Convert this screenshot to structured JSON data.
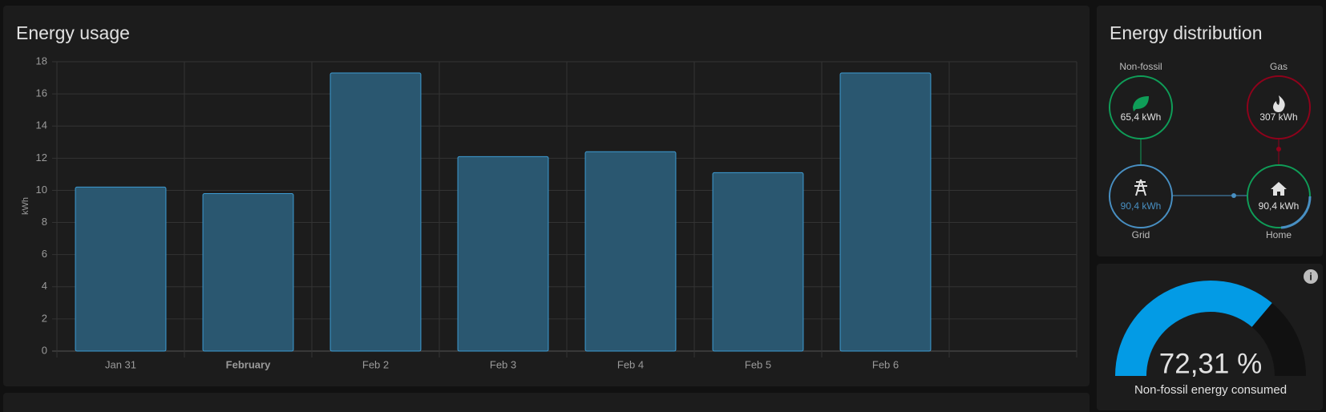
{
  "chart_data": {
    "type": "bar",
    "title": "Energy usage",
    "y_label": "kWh",
    "categories": [
      "Jan 31",
      "February",
      "Feb 2",
      "Feb 3",
      "Feb 4",
      "Feb 5",
      "Feb 6",
      null
    ],
    "values": [
      10.2,
      9.8,
      17.3,
      12.1,
      12.4,
      11.1,
      17.3,
      null
    ],
    "color": "#2a5770",
    "border_color": "#3d9bd2",
    "ylim": [
      0,
      18
    ],
    "yticks": [
      0,
      2,
      4,
      6,
      8,
      10,
      12,
      14,
      16,
      18
    ],
    "grid": true
  },
  "distribution": {
    "title": "Energy distribution",
    "nodes": [
      {
        "label": "Non-fossil",
        "value": "65,4 kWh",
        "color": "#0f9d58"
      },
      {
        "label": "Gas",
        "value": "307 kWh",
        "color": "#8e021b"
      },
      {
        "label": "Grid",
        "value": "90,4 kWh",
        "color": "#488fc2"
      },
      {
        "label": "Home",
        "value": "90,4 kWh",
        "color": "#0f9d58"
      }
    ]
  },
  "gauge": {
    "value": 72.31,
    "value_label": "72,31 %",
    "label": "Non-fossil energy consumed",
    "min": 0,
    "max": 100,
    "color": "#039be5"
  }
}
